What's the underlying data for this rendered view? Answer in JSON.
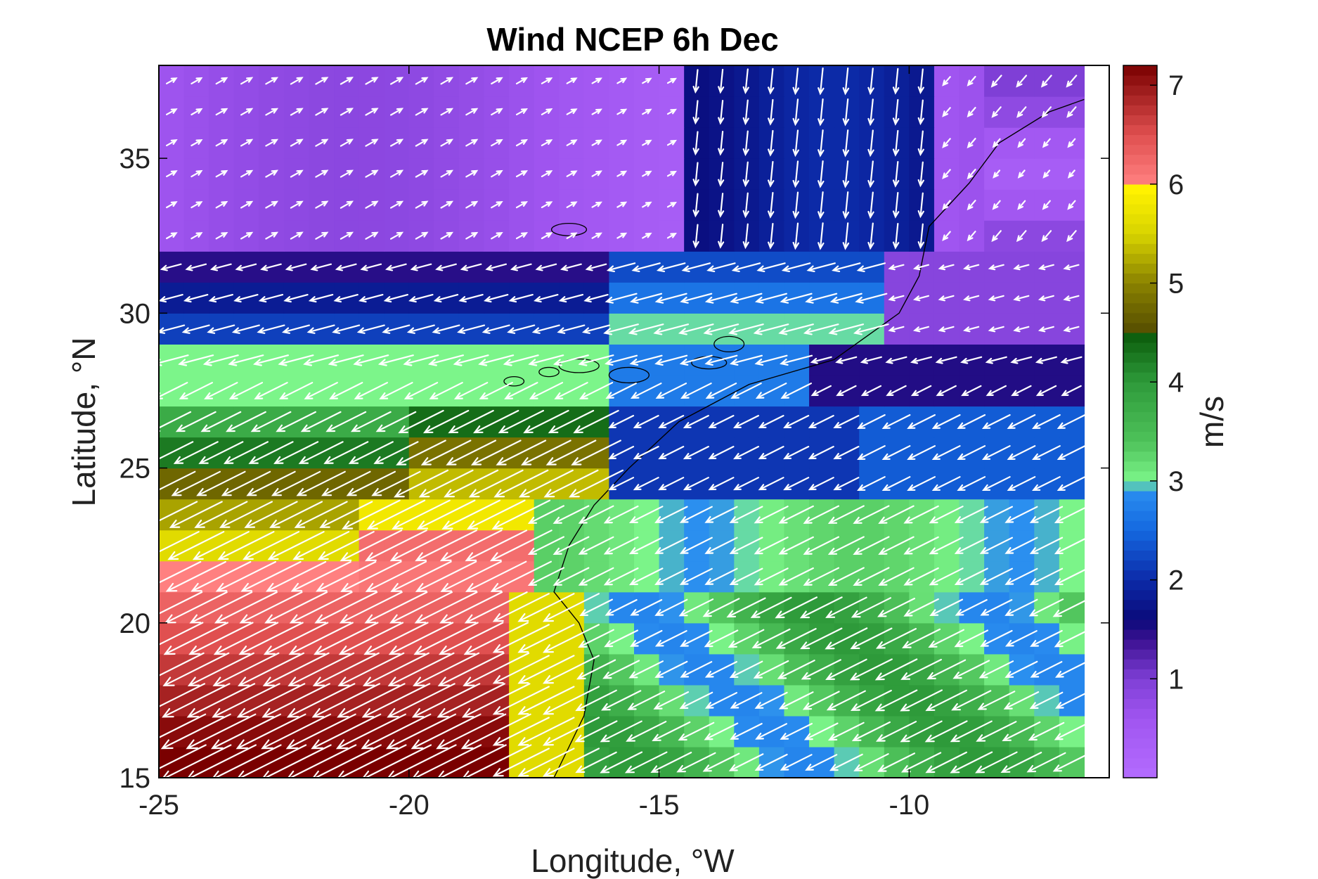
{
  "chart_data": {
    "type": "heatmap",
    "subtype": "wind-speed-field-with-vectors",
    "title": "Wind NCEP 6h Dec",
    "xlabel": "Longitude, °W",
    "ylabel": "Latitude, °N",
    "colorbar_label": "m/s",
    "xlim": [
      -25,
      -6
    ],
    "ylim": [
      15,
      38
    ],
    "x_ticks": [
      -25,
      -20,
      -15,
      -10
    ],
    "x_tick_labels": [
      "-25",
      "-20",
      "-15",
      "-10"
    ],
    "y_ticks": [
      15,
      20,
      25,
      30,
      35
    ],
    "y_tick_labels": [
      "15",
      "20",
      "25",
      "30",
      "35"
    ],
    "colorbar_range": [
      0,
      7.2
    ],
    "colorbar_ticks": [
      1,
      2,
      3,
      4,
      5,
      6,
      7
    ],
    "colorbar_tick_labels": [
      "1",
      "2",
      "3",
      "4",
      "5",
      "6",
      "7"
    ],
    "colormap": [
      {
        "value": 0.0,
        "color": "#b46cff"
      },
      {
        "value": 0.6,
        "color": "#a055f0"
      },
      {
        "value": 1.0,
        "color": "#7f3fd6"
      },
      {
        "value": 1.4,
        "color": "#3a1090"
      },
      {
        "value": 1.6,
        "color": "#0a0a7a"
      },
      {
        "value": 2.0,
        "color": "#0c2aa8"
      },
      {
        "value": 2.5,
        "color": "#1468e0"
      },
      {
        "value": 2.9,
        "color": "#2a8ef0"
      },
      {
        "value": 3.0,
        "color": "#7cf58a"
      },
      {
        "value": 3.4,
        "color": "#4ec25a"
      },
      {
        "value": 4.0,
        "color": "#2e9a3a"
      },
      {
        "value": 4.5,
        "color": "#0a5a0a"
      },
      {
        "value": 4.55,
        "color": "#5a5200"
      },
      {
        "value": 5.0,
        "color": "#8a8200"
      },
      {
        "value": 5.5,
        "color": "#d8d400"
      },
      {
        "value": 5.95,
        "color": "#fff200"
      },
      {
        "value": 6.0,
        "color": "#ff8080"
      },
      {
        "value": 6.5,
        "color": "#e05050"
      },
      {
        "value": 7.2,
        "color": "#7a0000"
      }
    ],
    "grid": {
      "lon_start": -25,
      "lon_step": 0.5,
      "cols": 37,
      "lat_start": 15,
      "lat_step": 1.0,
      "rows": 23
    },
    "wind_field_description": "Strong northeasterly trades (6-7 m/s) in the southwest; weak winds (<1.5 m/s) in the north; southward flow near -11°W, 33-37°N"
  }
}
